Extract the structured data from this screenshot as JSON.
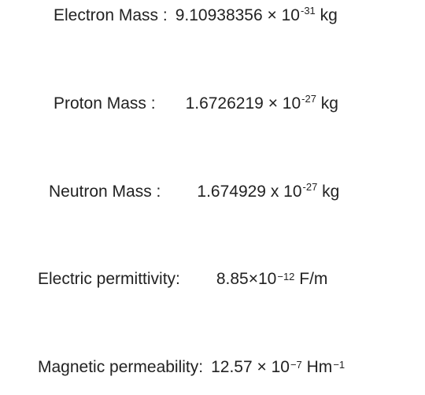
{
  "rows": [
    {
      "label": "Electron Mass :",
      "mantissa": "9.10938356",
      "times": "× 10",
      "exponent": "-31",
      "unit": "kg"
    },
    {
      "label": "Proton Mass :",
      "mantissa": "1.6726219",
      "times": "× 10",
      "exponent": "-27",
      "unit": "kg"
    },
    {
      "label": "Neutron Mass :",
      "mantissa": "1.674929",
      "times": "x 10",
      "exponent": "-27",
      "unit": "kg"
    },
    {
      "label": "Electric permittivity:",
      "mantissa": "8.85",
      "times": "×10",
      "exponent": "−12",
      "unit": "F/m"
    },
    {
      "label": "Magnetic permeability:",
      "mantissa": "12.57",
      "times": "× 10",
      "exponent": "−7",
      "unit": "Hm",
      "unit_exponent": "−1"
    }
  ]
}
